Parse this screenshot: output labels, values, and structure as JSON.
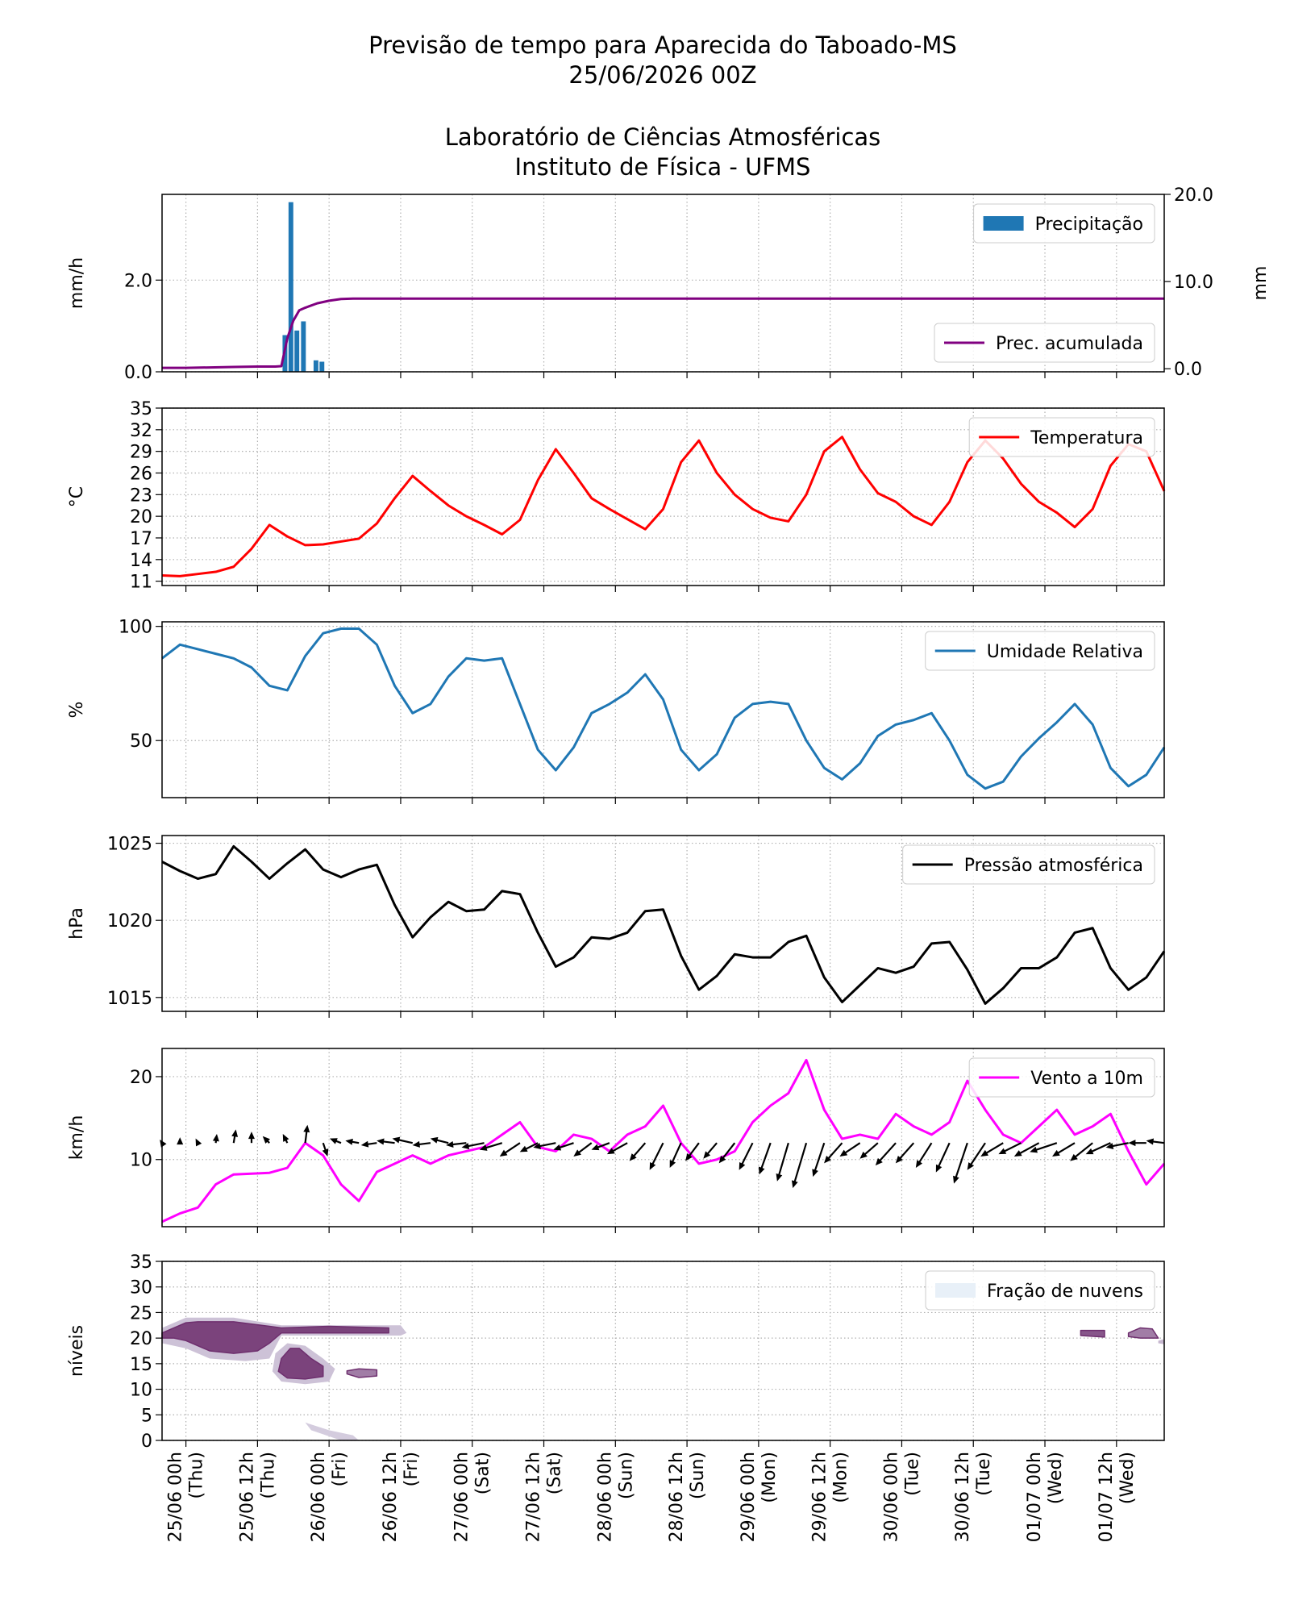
{
  "title": [
    "Previsão de tempo para Aparecida do Taboado-MS",
    "25/06/2026 00Z"
  ],
  "subtitle": [
    "Laboratório de Ciências Atmosféricas",
    "Instituto de Física - UFMS"
  ],
  "chart_data": [
    {
      "type": "bar",
      "ylabel": "mm/h",
      "y2label": "mm",
      "xlim": [
        -4,
        164
      ],
      "ylim": [
        0,
        3.87
      ],
      "yticks": [
        {
          "value": 0,
          "label": "0.0"
        },
        {
          "value": 2,
          "label": "2.0"
        }
      ],
      "y2lim": [
        -0.35,
        20
      ],
      "y2ticks": [
        {
          "value": 0,
          "label": "0.0"
        },
        {
          "value": 10,
          "label": "10.0"
        },
        {
          "value": 20,
          "label": "20.0"
        }
      ],
      "grid": true,
      "series": [
        {
          "name": "Precipitação",
          "type": "bar",
          "color": "#1f77b4",
          "legend": "upper right",
          "x": [
            16.6,
            17.6,
            18.6,
            19.7,
            21.8,
            22.8
          ],
          "values": [
            0.8,
            3.7,
            0.9,
            1.1,
            0.25,
            0.22
          ]
        },
        {
          "name": "Prec. acumulada",
          "type": "line",
          "axis": "y2",
          "color": "#800080",
          "legend": "lower right",
          "x": [
            -4,
            0,
            4,
            8,
            12,
            15,
            16,
            17,
            18,
            19,
            20,
            22,
            24,
            26,
            28,
            164
          ],
          "values": [
            0.1,
            0.1,
            0.15,
            0.2,
            0.25,
            0.25,
            0.3,
            3.5,
            5.5,
            6.7,
            7,
            7.5,
            7.8,
            8,
            8.05,
            8.05
          ]
        }
      ]
    },
    {
      "type": "line",
      "ylabel": "°C",
      "xlim": [
        -4,
        164
      ],
      "ylim": [
        10.4,
        35
      ],
      "yticks": [
        11,
        14,
        17,
        20,
        23,
        26,
        29,
        32,
        35
      ],
      "grid": true,
      "x": [
        -4,
        -1,
        2,
        5,
        8,
        11,
        14,
        17,
        20,
        23,
        26,
        29,
        32,
        35,
        38,
        41,
        44,
        47,
        50,
        53,
        56,
        59,
        62,
        65,
        68,
        71,
        74,
        77,
        80,
        83,
        86,
        89,
        92,
        95,
        98,
        101,
        104,
        107,
        110,
        113,
        116,
        119,
        122,
        125,
        128,
        131,
        134,
        137,
        140,
        143,
        146,
        149,
        152,
        155,
        158,
        161,
        164
      ],
      "series": [
        {
          "name": "Temperatura",
          "type": "line",
          "color": "#ff0000",
          "legend": "upper right",
          "values": [
            11.8,
            11.7,
            12,
            12.3,
            13,
            15.5,
            18.8,
            17.2,
            16,
            16.1,
            16.5,
            16.9,
            19,
            22.5,
            25.6,
            23.5,
            21.5,
            20,
            18.8,
            17.5,
            19.5,
            25,
            29.3,
            26,
            22.5,
            21,
            19.6,
            18.2,
            21,
            27.5,
            30.5,
            26,
            23,
            21,
            19.8,
            19.3,
            23,
            29,
            31,
            26.5,
            23.2,
            22,
            20,
            18.8,
            22,
            27.5,
            30.5,
            28,
            24.5,
            22,
            20.5,
            18.5,
            21,
            27,
            30,
            29,
            23.5
          ]
        }
      ]
    },
    {
      "type": "line",
      "ylabel": "%",
      "xlim": [
        -4,
        164
      ],
      "ylim": [
        25,
        102
      ],
      "yticks": [
        50,
        100
      ],
      "grid": true,
      "x": [
        -4,
        -1,
        2,
        5,
        8,
        11,
        14,
        17,
        20,
        23,
        26,
        29,
        32,
        35,
        38,
        41,
        44,
        47,
        50,
        53,
        56,
        59,
        62,
        65,
        68,
        71,
        74,
        77,
        80,
        83,
        86,
        89,
        92,
        95,
        98,
        101,
        104,
        107,
        110,
        113,
        116,
        119,
        122,
        125,
        128,
        131,
        134,
        137,
        140,
        143,
        146,
        149,
        152,
        155,
        158,
        161,
        164
      ],
      "series": [
        {
          "name": "Umidade Relativa",
          "type": "line",
          "color": "#1f77b4",
          "legend": "upper right",
          "values": [
            86,
            92,
            90,
            88,
            86,
            82,
            74,
            72,
            87,
            97,
            99,
            99,
            92,
            74,
            62,
            66,
            78,
            86,
            85,
            86,
            66,
            46,
            37,
            47,
            62,
            66,
            71,
            79,
            68,
            46,
            37,
            44,
            60,
            66,
            67,
            66,
            50,
            38,
            33,
            40,
            52,
            57,
            59,
            62,
            50,
            35,
            29,
            32,
            43,
            51,
            58,
            66,
            57,
            38,
            30,
            35,
            47
          ]
        }
      ]
    },
    {
      "type": "line",
      "ylabel": "hPa",
      "xlim": [
        -4,
        164
      ],
      "ylim": [
        1014.1,
        1025.5
      ],
      "yticks": [
        1015,
        1020,
        1025
      ],
      "grid": true,
      "x": [
        -4,
        -1,
        2,
        5,
        8,
        11,
        14,
        17,
        20,
        23,
        26,
        29,
        32,
        35,
        38,
        41,
        44,
        47,
        50,
        53,
        56,
        59,
        62,
        65,
        68,
        71,
        74,
        77,
        80,
        83,
        86,
        89,
        92,
        95,
        98,
        101,
        104,
        107,
        110,
        113,
        116,
        119,
        122,
        125,
        128,
        131,
        134,
        137,
        140,
        143,
        146,
        149,
        152,
        155,
        158,
        161,
        164
      ],
      "series": [
        {
          "name": "Pressão atmosférica",
          "type": "line",
          "color": "#000000",
          "legend": "upper right",
          "values": [
            1023.8,
            1023.2,
            1022.7,
            1023,
            1024.8,
            1023.8,
            1022.7,
            1023.7,
            1024.6,
            1023.3,
            1022.8,
            1023.3,
            1023.6,
            1021,
            1018.9,
            1020.2,
            1021.2,
            1020.6,
            1020.7,
            1021.9,
            1021.7,
            1019.2,
            1017,
            1017.6,
            1018.9,
            1018.8,
            1019.2,
            1020.6,
            1020.7,
            1017.7,
            1015.5,
            1016.4,
            1017.8,
            1017.6,
            1017.6,
            1018.6,
            1019,
            1016.3,
            1014.7,
            1015.8,
            1016.9,
            1016.6,
            1017,
            1018.5,
            1018.6,
            1016.8,
            1014.6,
            1015.6,
            1016.9,
            1016.9,
            1017.6,
            1019.2,
            1019.5,
            1016.9,
            1015.5,
            1016.3,
            1018
          ]
        }
      ]
    },
    {
      "type": "line",
      "ylabel": "km/h",
      "xlim": [
        -4,
        164
      ],
      "ylim": [
        1.9,
        23.4
      ],
      "yticks": [
        10,
        20
      ],
      "grid": true,
      "x": [
        -4,
        -1,
        2,
        5,
        8,
        11,
        14,
        17,
        20,
        23,
        26,
        29,
        32,
        35,
        38,
        41,
        44,
        47,
        50,
        53,
        56,
        59,
        62,
        65,
        68,
        71,
        74,
        77,
        80,
        83,
        86,
        89,
        92,
        95,
        98,
        101,
        104,
        107,
        110,
        113,
        116,
        119,
        122,
        125,
        128,
        131,
        134,
        137,
        140,
        143,
        146,
        149,
        152,
        155,
        158,
        161,
        164
      ],
      "quiver_y": 12,
      "series": [
        {
          "name": "Vento a 10m",
          "type": "line",
          "color": "#ff00ff",
          "legend": "upper right",
          "values": [
            2.5,
            3.5,
            4.2,
            7,
            8.2,
            8.3,
            8.4,
            9,
            12,
            10.5,
            7,
            5,
            8.5,
            9.5,
            10.5,
            9.5,
            10.5,
            11,
            11.5,
            13,
            14.5,
            11.5,
            11,
            13,
            12.5,
            11,
            13,
            14,
            16.5,
            12,
            9.5,
            10,
            11,
            14.5,
            16.5,
            18,
            22,
            16,
            12.5,
            13,
            12.5,
            15.5,
            14,
            13,
            14.5,
            19.5,
            16,
            13,
            12,
            14,
            16,
            13,
            14,
            15.5,
            11,
            7,
            9.5
          ]
        },
        {
          "type": "quiver",
          "color": "#000000",
          "u": [
            -1,
            0,
            -1,
            0.5,
            1,
            0,
            -3,
            -2,
            1,
            2,
            -5,
            -6,
            -7,
            -8,
            -9,
            -8,
            -8,
            -9,
            -10,
            -10,
            -9,
            -8,
            -10,
            -9,
            -8,
            -8,
            -9,
            -7,
            -6,
            -5,
            -6,
            -6,
            -7,
            -6,
            -5,
            -5,
            -6,
            -5,
            -8,
            -9,
            -8,
            -9,
            -8,
            -7,
            -6,
            -6,
            -8,
            -10,
            -10,
            -11,
            -12,
            -10,
            -10,
            -11,
            -10,
            -8,
            -8
          ],
          "v": [
            1.5,
            2.5,
            2,
            4,
            6,
            5,
            3,
            4,
            8,
            -6,
            2,
            1,
            -1,
            1,
            2,
            -1,
            2,
            -1,
            -2,
            -3,
            -6,
            -4,
            -2,
            -3,
            -6,
            -3,
            -5,
            -8,
            -12,
            -11,
            -8,
            -7,
            -9,
            -12,
            -14,
            -17,
            -20,
            -15,
            -9,
            -6,
            -7,
            -10,
            -9,
            -11,
            -13,
            -18,
            -12,
            -6,
            -5,
            -6,
            -4,
            -6,
            -8,
            -5,
            -2,
            0,
            1
          ]
        }
      ]
    },
    {
      "type": "contour",
      "ylabel": "níveis",
      "name": "Fração de nuvens",
      "color": "#e8f0f8",
      "legend": "upper right",
      "cmap": [
        "#edf3fa",
        "#6e2f6e"
      ],
      "xlim": [
        -4,
        164
      ],
      "ylim": [
        0,
        35
      ],
      "yticks": [
        0,
        5,
        10,
        15,
        20,
        25,
        30,
        35
      ],
      "grid": true,
      "xticks": [
        {
          "value": 0,
          "label": "25/06 00h",
          "day": "(Thu)"
        },
        {
          "value": 12,
          "label": "25/06 12h",
          "day": "(Thu)"
        },
        {
          "value": 24,
          "label": "26/06 00h",
          "day": "(Fri)"
        },
        {
          "value": 36,
          "label": "26/06 12h",
          "day": "(Fri)"
        },
        {
          "value": 48,
          "label": "27/06 00h",
          "day": "(Sat)"
        },
        {
          "value": 60,
          "label": "27/06 12h",
          "day": "(Sat)"
        },
        {
          "value": 72,
          "label": "28/06 00h",
          "day": "(Sun)"
        },
        {
          "value": 84,
          "label": "28/06 12h",
          "day": "(Sun)"
        },
        {
          "value": 96,
          "label": "29/06 00h",
          "day": "(Mon)"
        },
        {
          "value": 108,
          "label": "29/06 12h",
          "day": "(Mon)"
        },
        {
          "value": 120,
          "label": "30/06 00h",
          "day": "(Tue)"
        },
        {
          "value": 132,
          "label": "30/06 12h",
          "day": "(Tue)"
        },
        {
          "value": 144,
          "label": "01/07 00h",
          "day": "(Wed)"
        },
        {
          "value": 156,
          "label": "01/07 12h",
          "day": "(Wed)"
        }
      ],
      "patches": [
        {
          "fraction": 0.25,
          "x": [
            -4,
            0,
            8,
            16,
            36,
            37,
            36,
            16,
            14,
            10,
            4,
            0,
            -4
          ],
          "y": [
            22,
            24,
            24,
            22.5,
            22.5,
            21,
            20.5,
            20.5,
            16,
            15.5,
            16,
            18,
            19
          ]
        },
        {
          "fraction": 0.9,
          "x": [
            -4,
            -2,
            0,
            2,
            8,
            14,
            16,
            24,
            34,
            34,
            24,
            16,
            14,
            12,
            8,
            4,
            2,
            0,
            -2,
            -4
          ],
          "y": [
            21,
            22,
            23,
            23.2,
            23.2,
            22.3,
            22,
            22.3,
            22,
            21,
            21,
            21,
            19,
            17.5,
            17,
            17.5,
            18.5,
            19.5,
            20,
            20
          ]
        },
        {
          "fraction": 0.25,
          "x": [
            15,
            17,
            20,
            23,
            25,
            24,
            20,
            16,
            14.5
          ],
          "y": [
            17,
            19,
            18.5,
            16,
            14,
            11.5,
            11,
            11.5,
            13.5
          ]
        },
        {
          "fraction": 0.9,
          "x": [
            16,
            17.5,
            19,
            21,
            23,
            23,
            20,
            17,
            15.5
          ],
          "y": [
            16,
            18,
            18,
            16,
            14.5,
            12.5,
            12,
            12.2,
            13.5
          ]
        },
        {
          "fraction": 0.6,
          "x": [
            27,
            29,
            32,
            32,
            29,
            27
          ],
          "y": [
            13.6,
            14,
            13.8,
            12.6,
            12.3,
            13
          ]
        },
        {
          "fraction": 0.2,
          "x": [
            20,
            24,
            28,
            29,
            26,
            21
          ],
          "y": [
            3.5,
            2,
            1,
            0,
            0,
            2
          ]
        },
        {
          "fraction": 0.8,
          "x": [
            150,
            154,
            154,
            150
          ],
          "y": [
            21.5,
            21.5,
            20.2,
            20.5
          ]
        },
        {
          "fraction": 0.6,
          "x": [
            158,
            160,
            162,
            163,
            160,
            158
          ],
          "y": [
            21,
            22,
            21.8,
            20,
            20,
            20.3
          ]
        },
        {
          "fraction": 0.3,
          "x": [
            163,
            164,
            164,
            163
          ],
          "y": [
            19.5,
            19.8,
            18.8,
            19
          ]
        }
      ]
    }
  ]
}
